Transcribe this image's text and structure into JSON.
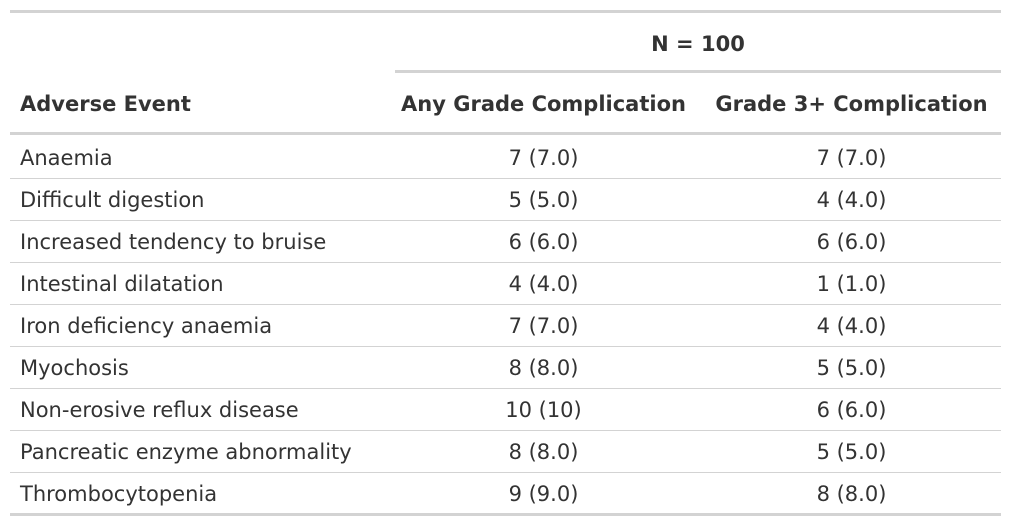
{
  "table": {
    "spanner": "N = 100",
    "columns": [
      "Adverse Event",
      "Any Grade Complication",
      "Grade 3+ Complication"
    ],
    "rows": [
      [
        "Anaemia",
        "7 (7.0)",
        "7 (7.0)"
      ],
      [
        "Difficult digestion",
        "5 (5.0)",
        "4 (4.0)"
      ],
      [
        "Increased tendency to bruise",
        "6 (6.0)",
        "6 (6.0)"
      ],
      [
        "Intestinal dilatation",
        "4 (4.0)",
        "1 (1.0)"
      ],
      [
        "Iron deficiency anaemia",
        "7 (7.0)",
        "4 (4.0)"
      ],
      [
        "Myochosis",
        "8 (8.0)",
        "5 (5.0)"
      ],
      [
        "Non-erosive reflux disease",
        "10 (10)",
        "6 (6.0)"
      ],
      [
        "Pancreatic enzyme abnormality",
        "8 (8.0)",
        "5 (5.0)"
      ],
      [
        "Thrombocytopenia",
        "9 (9.0)",
        "8 (8.0)"
      ]
    ]
  }
}
